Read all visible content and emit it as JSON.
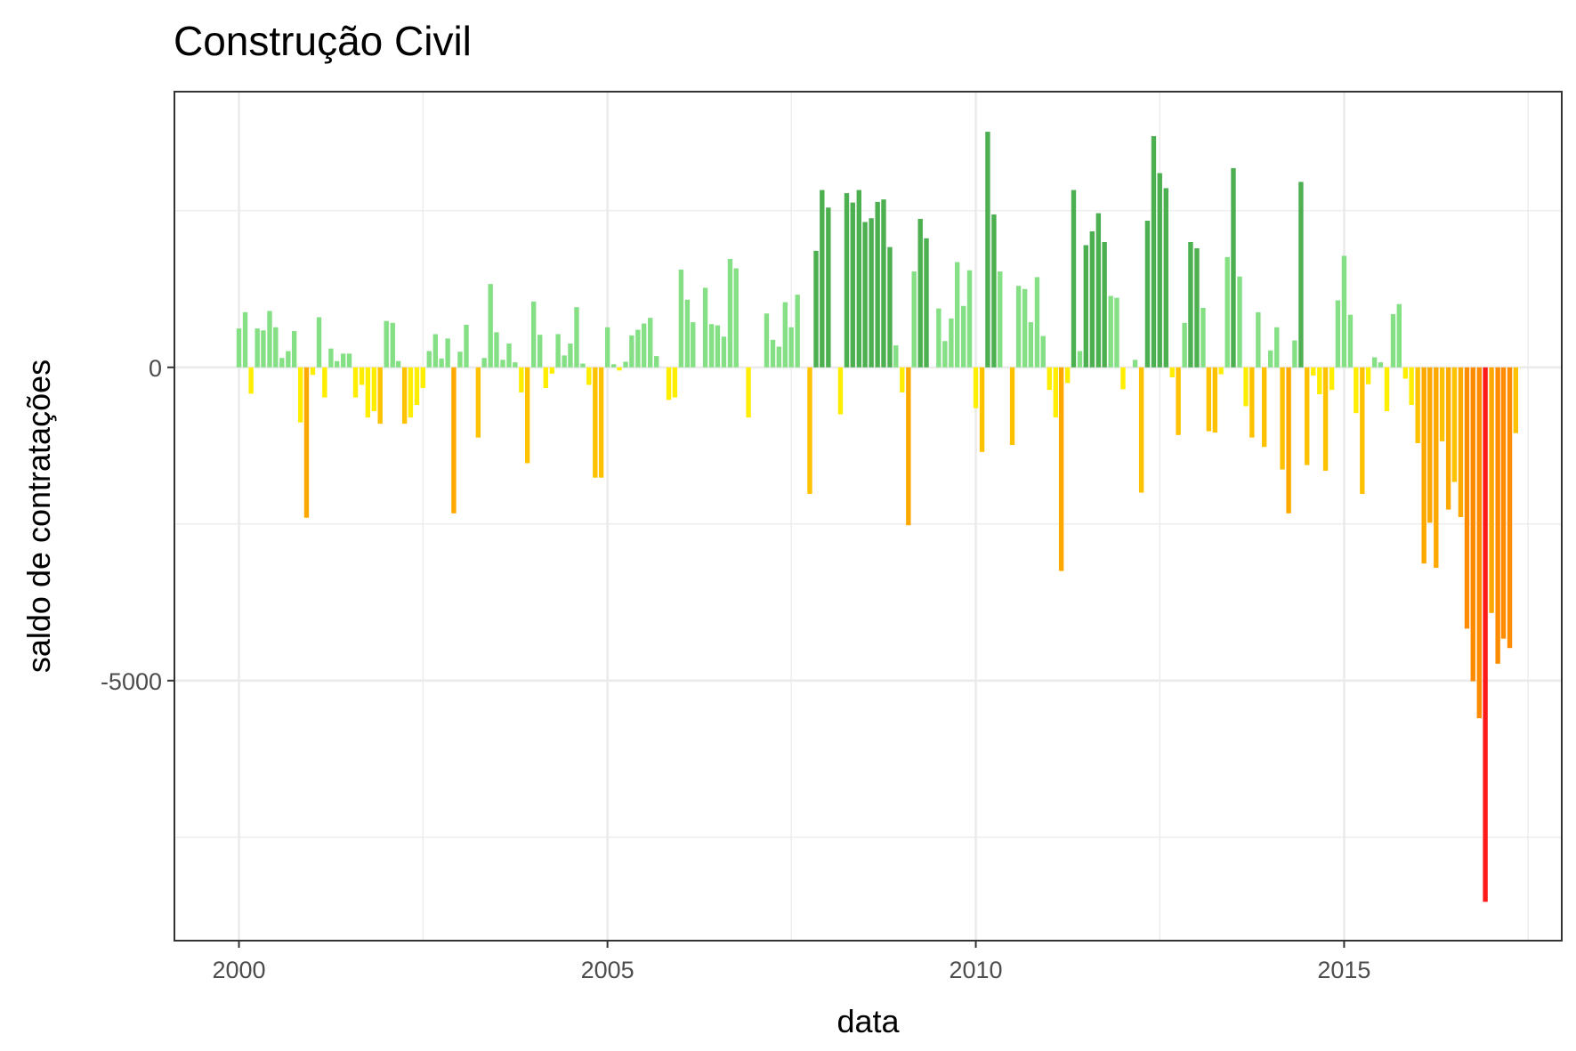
{
  "chart_data": {
    "type": "bar",
    "title": "Construção Civil",
    "xlabel": "data",
    "ylabel": "saldo de contratações",
    "xlim": [
      "1999-02-15",
      "2017-12-15"
    ],
    "ylim": [
      -9150,
      4400
    ],
    "x_ticks": [
      2000,
      2005,
      2010,
      2015
    ],
    "y_ticks": [
      0,
      -5000
    ],
    "grid": true,
    "legend": "none",
    "color_scale": {
      "red": "#ff1a1a",
      "orange": "#ff8c00",
      "gold": "#ffc200",
      "yellow": "#ffee00",
      "light_green": "#85e085",
      "green": "#4caf50"
    },
    "start_month": "2000-01",
    "values": [
      620,
      880,
      -420,
      620,
      590,
      900,
      640,
      150,
      260,
      580,
      -880,
      -2400,
      -120,
      800,
      -480,
      300,
      100,
      220,
      220,
      -480,
      -280,
      -800,
      -700,
      -900,
      740,
      710,
      100,
      -900,
      -800,
      -600,
      -330,
      260,
      530,
      140,
      460,
      -2330,
      250,
      680,
      0,
      -1120,
      150,
      1330,
      560,
      120,
      380,
      80,
      -400,
      -1530,
      1050,
      520,
      -330,
      -100,
      530,
      190,
      380,
      960,
      60,
      -280,
      -1760,
      -1760,
      640,
      50,
      -50,
      90,
      510,
      600,
      700,
      790,
      180,
      0,
      -520,
      -480,
      1560,
      1080,
      720,
      0,
      1270,
      690,
      670,
      490,
      1730,
      1580,
      0,
      -800,
      0,
      0,
      860,
      440,
      330,
      1040,
      640,
      1160,
      0,
      -2020,
      1860,
      2830,
      2550,
      0,
      -750,
      2780,
      2630,
      2830,
      2320,
      2380,
      2640,
      2680,
      1920,
      350,
      -400,
      -2520,
      1530,
      2370,
      2060,
      0,
      940,
      420,
      780,
      1680,
      980,
      1550,
      -650,
      -1350,
      3760,
      2440,
      1530,
      0,
      -1240,
      1300,
      1250,
      720,
      1440,
      500,
      -360,
      -800,
      -3250,
      -250,
      2830,
      260,
      1950,
      2170,
      2460,
      2000,
      1140,
      1110,
      -350,
      0,
      120,
      -2000,
      2340,
      3690,
      3100,
      2860,
      -160,
      -1080,
      710,
      2000,
      1900,
      950,
      -1020,
      -1040,
      -110,
      1760,
      3180,
      1450,
      -620,
      -1120,
      880,
      -1270,
      270,
      640,
      -1630,
      -2330,
      430,
      2960,
      -1560,
      -130,
      -430,
      -1650,
      -360,
      1070,
      1780,
      840,
      -730,
      -2020,
      -270,
      160,
      80,
      -700,
      850,
      1010,
      -180,
      -600,
      -1210,
      -3130,
      -2480,
      -3200,
      -1180,
      -2270,
      -1830,
      -2390,
      -4170,
      -5010,
      -5600,
      -8530,
      -3920,
      -4730,
      -4330,
      -4480,
      -1050
    ]
  }
}
